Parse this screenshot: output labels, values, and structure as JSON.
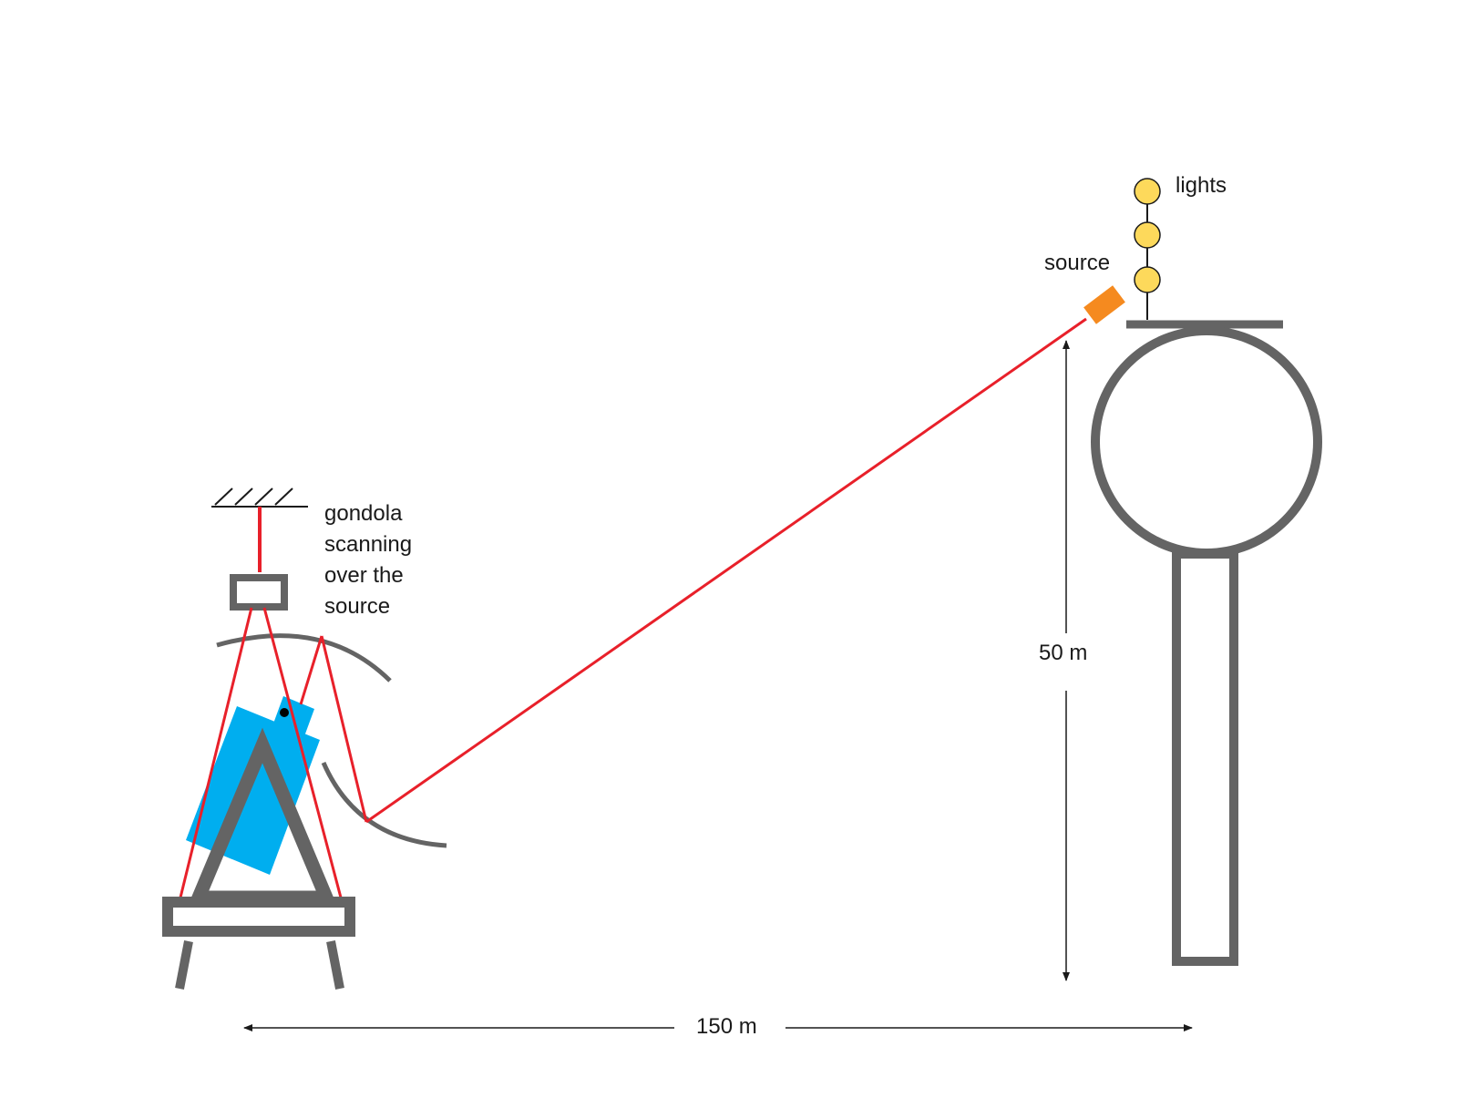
{
  "labels": {
    "lights": "lights",
    "source": "source",
    "gondola_lines": [
      "gondola",
      "scanning",
      "over the",
      "source"
    ],
    "height": "50 m",
    "distance": "150 m"
  },
  "colors": {
    "beam": "#e8202a",
    "structure": "#646464",
    "gondola": "#00aeef",
    "source": "#f58a1f",
    "light": "#fdd95b",
    "ink": "#1a1a1a"
  },
  "icons": {
    "light": "light-bulb-circle",
    "source": "light-source-box",
    "mount": "ceiling-hatch"
  }
}
